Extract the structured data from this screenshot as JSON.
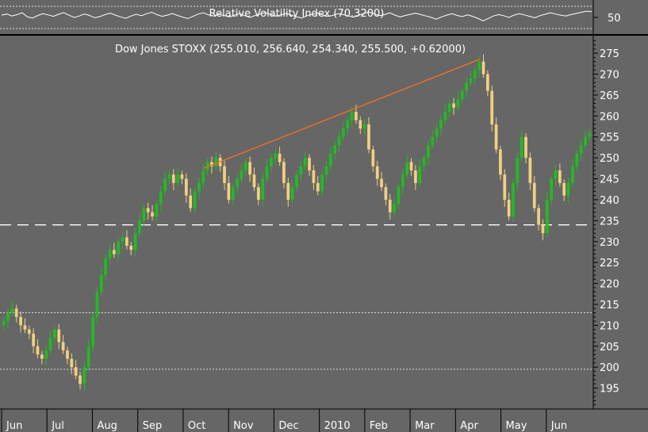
{
  "chart_data": [
    {
      "type": "line",
      "panel": "indicator",
      "title": "Relative Volatility Index (70.3200)",
      "y_ticks": [
        50
      ],
      "ylim": [
        0,
        100
      ],
      "reference_lines": [
        80,
        20
      ],
      "series": [
        {
          "values": [
            58,
            62,
            55,
            60,
            66,
            52,
            48,
            57,
            63,
            59,
            54,
            61,
            67,
            58,
            50,
            55,
            62,
            57,
            49,
            53,
            60,
            65,
            58,
            52,
            47,
            55,
            61,
            56,
            63,
            68,
            60,
            54,
            58,
            64,
            57,
            51,
            46,
            54,
            62,
            66,
            59,
            55,
            61,
            57,
            52,
            58,
            63,
            56,
            50,
            57,
            62,
            67,
            60,
            55,
            59,
            64,
            58,
            52,
            48,
            56,
            61,
            65,
            59,
            54,
            57,
            63,
            60,
            55,
            51,
            58,
            64,
            69,
            62,
            56,
            60,
            66,
            58,
            52,
            57,
            61,
            65,
            60,
            55,
            50,
            44,
            52,
            58,
            63,
            57,
            53,
            59,
            54,
            47,
            38,
            46,
            55,
            60,
            56,
            50,
            58,
            63,
            59,
            54,
            49,
            56,
            61,
            66,
            62,
            58,
            55,
            60,
            64,
            68,
            72,
            70
          ]
        }
      ]
    },
    {
      "type": "candlestick",
      "panel": "price",
      "title": "Dow Jones STOXX (255.010, 256.640, 254.340, 255.500, +0.62000)",
      "x_tick_labels": [
        "Jun",
        "Jul",
        "Aug",
        "Sep",
        "Oct",
        "Nov",
        "Dec",
        "2010",
        "Feb",
        "Mar",
        "Apr",
        "May",
        "Jun"
      ],
      "y_ticks": [
        195,
        200,
        205,
        210,
        215,
        220,
        225,
        230,
        235,
        240,
        245,
        250,
        255,
        260,
        265,
        270,
        275
      ],
      "ylim": [
        190,
        279
      ],
      "trendline": {
        "from_close": 247,
        "to_close": 273,
        "color": "#f07020"
      },
      "support_line": 234,
      "reference_lines": [
        213,
        199.5
      ],
      "colors": {
        "up": "#22bb22",
        "down": "#f0d080",
        "background": "#666666"
      },
      "closes": [
        211,
        213,
        214,
        212,
        210,
        209,
        208,
        205,
        203,
        202,
        204,
        207,
        209,
        206,
        204,
        202,
        200,
        198,
        196,
        200,
        205,
        212,
        218,
        222,
        226,
        228,
        227,
        230,
        231,
        229,
        228,
        232,
        235,
        238,
        237,
        236,
        239,
        242,
        245,
        246,
        244,
        246,
        245,
        241,
        238,
        242,
        244,
        247,
        249,
        248,
        250,
        248,
        244,
        240,
        243,
        245,
        247,
        249,
        246,
        243,
        240,
        245,
        248,
        250,
        251,
        249,
        244,
        240,
        243,
        246,
        248,
        250,
        247,
        244,
        242,
        246,
        248,
        251,
        253,
        255,
        257,
        259,
        261,
        259,
        257,
        258,
        252,
        248,
        245,
        243,
        240,
        237,
        239,
        243,
        246,
        249,
        247,
        244,
        248,
        250,
        253,
        255,
        257,
        259,
        261,
        263,
        262,
        264,
        266,
        268,
        269,
        271,
        273,
        270,
        266,
        258,
        252,
        246,
        240,
        236,
        244,
        250,
        255,
        250,
        244,
        238,
        234,
        232,
        240,
        245,
        247,
        244,
        241,
        244,
        248,
        251,
        253,
        255,
        256
      ]
    }
  ]
}
